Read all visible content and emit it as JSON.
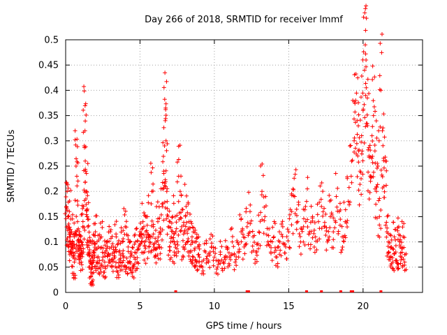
{
  "chart_data": {
    "type": "scatter",
    "title": "Day 266 of 2018, SRMTID for receiver lmmf",
    "xlabel": "GPS time / hours",
    "ylabel": "SRMTID / TECUs",
    "xlim": [
      0,
      24
    ],
    "ylim": [
      0,
      0.5
    ],
    "xticks": [
      0,
      5,
      10,
      15,
      20
    ],
    "yticks": [
      0,
      0.05,
      0.1,
      0.15,
      0.2,
      0.25,
      0.3,
      0.35,
      0.4,
      0.45,
      0.5
    ],
    "grid": true,
    "marker": "+",
    "color": "#ff0000",
    "series": [
      {
        "name": "SRMTID",
        "points": [
          [
            0.05,
            0.17
          ],
          [
            0.1,
            0.2
          ],
          [
            0.15,
            0.13
          ],
          [
            0.2,
            0.09
          ],
          [
            0.25,
            0.16
          ],
          [
            0.3,
            0.11
          ],
          [
            0.35,
            0.08
          ],
          [
            0.4,
            0.12
          ],
          [
            0.45,
            0.1
          ],
          [
            0.5,
            0.07
          ],
          [
            0.55,
            0.03
          ],
          [
            0.6,
            0.09
          ],
          [
            0.65,
            0.12
          ],
          [
            0.7,
            0.25
          ],
          [
            0.75,
            0.23
          ],
          [
            0.8,
            0.14
          ],
          [
            0.85,
            0.1
          ],
          [
            0.9,
            0.07
          ],
          [
            0.95,
            0.09
          ],
          [
            1.0,
            0.11
          ],
          [
            1.05,
            0.06
          ],
          [
            1.1,
            0.08
          ],
          [
            1.15,
            0.13
          ],
          [
            1.2,
            0.17
          ],
          [
            1.25,
            0.29
          ],
          [
            1.3,
            0.32
          ],
          [
            1.35,
            0.24
          ],
          [
            1.4,
            0.2
          ],
          [
            1.45,
            0.15
          ],
          [
            1.5,
            0.13
          ],
          [
            1.55,
            0.1
          ],
          [
            1.6,
            0.08
          ],
          [
            1.65,
            0.06
          ],
          [
            1.7,
            0.04
          ],
          [
            1.75,
            0.02
          ],
          [
            1.8,
            0.05
          ],
          [
            1.85,
            0.08
          ],
          [
            1.9,
            0.1
          ],
          [
            1.95,
            0.07
          ],
          [
            2.0,
            0.12
          ],
          [
            2.1,
            0.06
          ],
          [
            2.2,
            0.09
          ],
          [
            2.3,
            0.05
          ],
          [
            2.4,
            0.11
          ],
          [
            2.5,
            0.07
          ],
          [
            2.6,
            0.04
          ],
          [
            2.7,
            0.08
          ],
          [
            2.8,
            0.1
          ],
          [
            2.9,
            0.06
          ],
          [
            3.0,
            0.12
          ],
          [
            3.1,
            0.05
          ],
          [
            3.2,
            0.09
          ],
          [
            3.3,
            0.07
          ],
          [
            3.4,
            0.11
          ],
          [
            3.5,
            0.04
          ],
          [
            3.6,
            0.08
          ],
          [
            3.7,
            0.06
          ],
          [
            3.8,
            0.1
          ],
          [
            3.9,
            0.07
          ],
          [
            4.0,
            0.13
          ],
          [
            4.1,
            0.05
          ],
          [
            4.2,
            0.09
          ],
          [
            4.3,
            0.06
          ],
          [
            4.4,
            0.08
          ],
          [
            4.5,
            0.04
          ],
          [
            4.6,
            0.07
          ],
          [
            4.7,
            0.1
          ],
          [
            4.8,
            0.06
          ],
          [
            4.9,
            0.09
          ],
          [
            5.0,
            0.12
          ],
          [
            5.1,
            0.1
          ],
          [
            5.2,
            0.14
          ],
          [
            5.3,
            0.08
          ],
          [
            5.4,
            0.12
          ],
          [
            5.5,
            0.15
          ],
          [
            5.6,
            0.09
          ],
          [
            5.7,
            0.11
          ],
          [
            5.8,
            0.2
          ],
          [
            5.9,
            0.13
          ],
          [
            6.0,
            0.07
          ],
          [
            6.1,
            0.1
          ],
          [
            6.2,
            0.14
          ],
          [
            6.3,
            0.09
          ],
          [
            6.4,
            0.12
          ],
          [
            6.5,
            0.17
          ],
          [
            6.6,
            0.24
          ],
          [
            6.65,
            0.29
          ],
          [
            6.7,
            0.34
          ],
          [
            6.75,
            0.3
          ],
          [
            6.8,
            0.2
          ],
          [
            6.9,
            0.13
          ],
          [
            7.0,
            0.09
          ],
          [
            7.1,
            0.11
          ],
          [
            7.2,
            0.15
          ],
          [
            7.3,
            0.08
          ],
          [
            7.4,
            0.12
          ],
          [
            7.5,
            0.1
          ],
          [
            7.6,
            0.23
          ],
          [
            7.7,
            0.2
          ],
          [
            7.8,
            0.13
          ],
          [
            7.9,
            0.09
          ],
          [
            8.0,
            0.12
          ],
          [
            8.1,
            0.17
          ],
          [
            8.2,
            0.1
          ],
          [
            8.3,
            0.14
          ],
          [
            8.4,
            0.08
          ],
          [
            8.5,
            0.11
          ],
          [
            8.6,
            0.07
          ],
          [
            8.7,
            0.1
          ],
          [
            8.8,
            0.06
          ],
          [
            8.9,
            0.09
          ],
          [
            9.0,
            0.07
          ],
          [
            9.2,
            0.05
          ],
          [
            9.4,
            0.08
          ],
          [
            9.6,
            0.06
          ],
          [
            9.8,
            0.09
          ],
          [
            10.0,
            0.07
          ],
          [
            10.2,
            0.05
          ],
          [
            10.4,
            0.08
          ],
          [
            10.6,
            0.06
          ],
          [
            10.8,
            0.09
          ],
          [
            11.0,
            0.07
          ],
          [
            11.2,
            0.1
          ],
          [
            11.4,
            0.06
          ],
          [
            11.6,
            0.08
          ],
          [
            11.8,
            0.12
          ],
          [
            12.0,
            0.09
          ],
          [
            12.2,
            0.13
          ],
          [
            12.4,
            0.16
          ],
          [
            12.6,
            0.11
          ],
          [
            12.8,
            0.08
          ],
          [
            13.0,
            0.12
          ],
          [
            13.2,
            0.2
          ],
          [
            13.4,
            0.15
          ],
          [
            13.6,
            0.1
          ],
          [
            13.8,
            0.08
          ],
          [
            14.0,
            0.11
          ],
          [
            14.2,
            0.07
          ],
          [
            14.4,
            0.1
          ],
          [
            14.6,
            0.13
          ],
          [
            14.8,
            0.09
          ],
          [
            15.0,
            0.12
          ],
          [
            15.2,
            0.16
          ],
          [
            15.4,
            0.19
          ],
          [
            15.6,
            0.14
          ],
          [
            15.8,
            0.1
          ],
          [
            16.0,
            0.13
          ],
          [
            16.2,
            0.18
          ],
          [
            16.4,
            0.12
          ],
          [
            16.6,
            0.15
          ],
          [
            16.8,
            0.11
          ],
          [
            17.0,
            0.14
          ],
          [
            17.2,
            0.17
          ],
          [
            17.4,
            0.13
          ],
          [
            17.6,
            0.1
          ],
          [
            17.8,
            0.15
          ],
          [
            18.0,
            0.12
          ],
          [
            18.2,
            0.19
          ],
          [
            18.4,
            0.16
          ],
          [
            18.6,
            0.11
          ],
          [
            18.8,
            0.14
          ],
          [
            19.0,
            0.18
          ],
          [
            19.2,
            0.23
          ],
          [
            19.4,
            0.3
          ],
          [
            19.5,
            0.38
          ],
          [
            19.6,
            0.34
          ],
          [
            19.7,
            0.28
          ],
          [
            19.8,
            0.24
          ],
          [
            19.9,
            0.31
          ],
          [
            20.0,
            0.36
          ],
          [
            20.1,
            0.44
          ],
          [
            20.15,
            0.49
          ],
          [
            20.2,
            0.46
          ],
          [
            20.3,
            0.33
          ],
          [
            20.4,
            0.27
          ],
          [
            20.5,
            0.22
          ],
          [
            20.6,
            0.31
          ],
          [
            20.7,
            0.35
          ],
          [
            20.8,
            0.28
          ],
          [
            20.9,
            0.2
          ],
          [
            21.0,
            0.25
          ],
          [
            21.1,
            0.15
          ],
          [
            21.2,
            0.4
          ],
          [
            21.3,
            0.32
          ],
          [
            21.4,
            0.21
          ],
          [
            21.5,
            0.26
          ],
          [
            21.6,
            0.12
          ],
          [
            21.7,
            0.1
          ],
          [
            21.8,
            0.07
          ],
          [
            21.9,
            0.09
          ],
          [
            22.0,
            0.06
          ],
          [
            22.1,
            0.11
          ],
          [
            22.2,
            0.08
          ],
          [
            22.3,
            0.05
          ],
          [
            22.4,
            0.13
          ],
          [
            22.5,
            0.09
          ],
          [
            22.6,
            0.07
          ],
          [
            22.7,
            0.11
          ],
          [
            22.8,
            0.06
          ]
        ]
      }
    ],
    "zero_markers_x": [
      7.4,
      12.2,
      12.3,
      16.2,
      17.2,
      18.5,
      19.2,
      19.3,
      21.2
    ]
  }
}
